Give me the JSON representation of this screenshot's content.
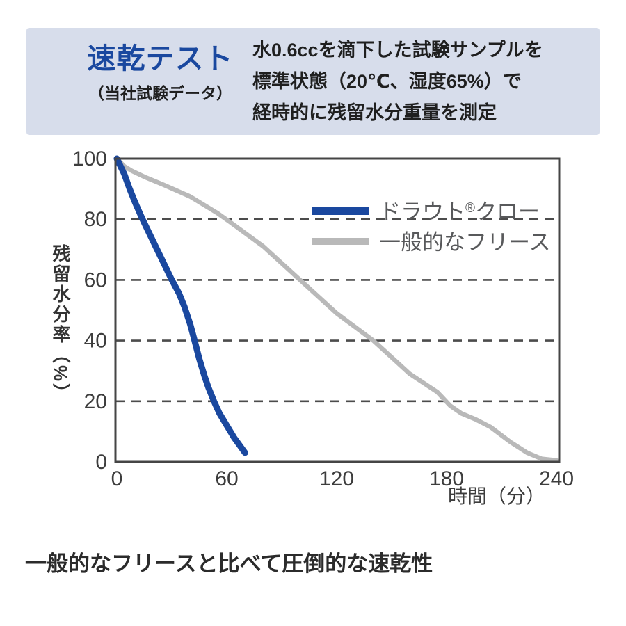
{
  "header": {
    "title": "速乾テスト",
    "subtitle": "（当社試験データ）",
    "description": [
      "水0.6ccを滴下した試験サンプルを",
      "標準状態（20℃、湿度65%）で",
      "経時的に残留水分重量を測定"
    ]
  },
  "caption": "一般的なフリースと比べて圧倒的な速乾性",
  "colors": {
    "header_bg": "#d7ddeb",
    "accent_blue": "#1a489f",
    "line_gray": "#b9b9b9",
    "axis": "#454545",
    "grid": "#4c4c4c",
    "legend_text": "#58595b"
  },
  "chart_data": {
    "type": "line",
    "title": "",
    "xlabel": "時間（分）",
    "ylabel": "残留水分率（%）",
    "xlim": [
      0,
      240
    ],
    "ylim": [
      0,
      100
    ],
    "xticks": [
      0,
      60,
      120,
      180,
      240
    ],
    "yticks": [
      0,
      20,
      40,
      60,
      80,
      100
    ],
    "grid": "horizontal dashed lines at y=20,40,60,80; full plot border box",
    "legend_position": "top-right-inside",
    "legend": [
      {
        "pre": "ドラウト",
        "reg": "®",
        "post": "クロー"
      },
      {
        "label": "一般的なフリース"
      }
    ],
    "series": [
      {
        "name": "ドラウト®クロー",
        "color": "#1a489f",
        "stroke_width": 9,
        "points": [
          [
            0,
            100
          ],
          [
            4,
            95
          ],
          [
            7,
            90
          ],
          [
            10,
            85.5
          ],
          [
            14,
            80
          ],
          [
            18,
            75
          ],
          [
            22,
            70
          ],
          [
            26,
            65
          ],
          [
            30,
            60
          ],
          [
            34,
            55.5
          ],
          [
            37,
            51
          ],
          [
            40,
            45.5
          ],
          [
            42,
            41
          ],
          [
            45,
            34
          ],
          [
            48,
            28
          ],
          [
            50,
            24.5
          ],
          [
            53,
            20
          ],
          [
            56,
            16
          ],
          [
            59,
            13
          ],
          [
            62,
            10
          ],
          [
            64,
            8
          ],
          [
            67,
            5.5
          ],
          [
            70,
            3
          ]
        ]
      },
      {
        "name": "一般的なフリース",
        "color": "#b9b9b9",
        "stroke_width": 6.5,
        "points": [
          [
            0,
            100
          ],
          [
            4,
            97.5
          ],
          [
            8,
            96
          ],
          [
            15,
            94
          ],
          [
            25,
            91.5
          ],
          [
            40,
            87.5
          ],
          [
            55,
            82
          ],
          [
            62,
            79
          ],
          [
            80,
            71
          ],
          [
            100,
            60
          ],
          [
            120,
            49
          ],
          [
            140,
            40
          ],
          [
            160,
            29
          ],
          [
            175,
            23
          ],
          [
            182,
            18.5
          ],
          [
            188,
            16
          ],
          [
            196,
            14
          ],
          [
            204,
            11.5
          ],
          [
            215,
            6.5
          ],
          [
            224,
            3
          ],
          [
            232,
            1
          ],
          [
            240,
            0.5
          ]
        ]
      }
    ]
  }
}
